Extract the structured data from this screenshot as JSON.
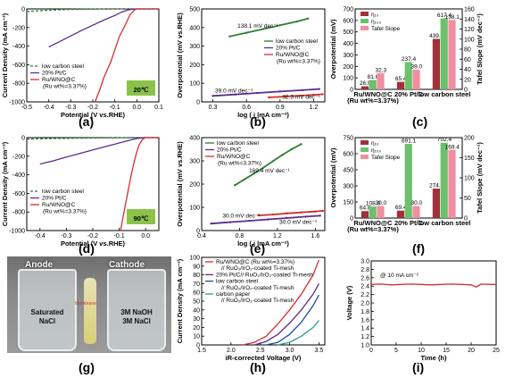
{
  "panels": {
    "a": "(a)",
    "b": "(b)",
    "c": "(c)",
    "d": "(d)",
    "e": "(e)",
    "f": "(f)",
    "g": "(g)",
    "h": "(h)",
    "i": "(i)"
  },
  "photo": {
    "anode": "Anode",
    "cathode": "Cathode",
    "left_solution_1": "Saturated",
    "left_solution_2": "NaCl",
    "right_solution_1": "3M NaOH",
    "right_solution_2": "3M NaCl",
    "membrane": "Membrane"
  },
  "chart_data": [
    {
      "id": "a",
      "type": "line",
      "xlabel": "Potential (V vs.RHE)",
      "ylabel": "Current Density (mA cm⁻²)",
      "xlim": [
        -0.5,
        0.1
      ],
      "ylim": [
        -1000,
        0
      ],
      "xticks": [
        "-0.5",
        "-0.4",
        "-0.3",
        "-0.2",
        "-0.1",
        "0.0",
        "0.1"
      ],
      "yticks": [
        "-1000",
        "-800",
        "-600",
        "-400",
        "-200",
        "0"
      ],
      "badge": "20℃",
      "legend": [
        "low carbon steel",
        "20% Pt/C",
        "Ru/WNO@C",
        "(Ru wt%=3.37%)"
      ],
      "series": [
        {
          "name": "low carbon steel",
          "color": "#2e7d32",
          "dash": "3,2",
          "points": [
            [
              -0.5,
              -28
            ],
            [
              -0.45,
              -20
            ],
            [
              -0.4,
              -14
            ],
            [
              -0.35,
              -9
            ],
            [
              -0.3,
              -6
            ],
            [
              -0.25,
              -3
            ],
            [
              -0.2,
              -2
            ],
            [
              -0.1,
              0
            ],
            [
              0.1,
              0
            ]
          ]
        },
        {
          "name": "20% Pt/C",
          "color": "#5b2c8f",
          "dash": "",
          "points": [
            [
              -0.4,
              -410
            ],
            [
              -0.35,
              -350
            ],
            [
              -0.3,
              -290
            ],
            [
              -0.25,
              -230
            ],
            [
              -0.2,
              -175
            ],
            [
              -0.15,
              -120
            ],
            [
              -0.1,
              -70
            ],
            [
              -0.07,
              -35
            ],
            [
              -0.04,
              -10
            ],
            [
              0.0,
              0
            ],
            [
              0.1,
              0
            ]
          ]
        },
        {
          "name": "Ru/WNO@C",
          "color": "#d32f2f",
          "dash": "",
          "points": [
            [
              -0.19,
              -1000
            ],
            [
              -0.17,
              -880
            ],
            [
              -0.15,
              -740
            ],
            [
              -0.12,
              -580
            ],
            [
              -0.1,
              -440
            ],
            [
              -0.08,
              -300
            ],
            [
              -0.05,
              -160
            ],
            [
              -0.03,
              -60
            ],
            [
              -0.01,
              -10
            ],
            [
              0.0,
              0
            ],
            [
              0.1,
              0
            ]
          ]
        }
      ]
    },
    {
      "id": "b",
      "type": "line",
      "xlabel": "log ( j |mA cm⁻²)",
      "ylabel": "Overpotential (mV vs.RHE)",
      "xlim": [
        0.2,
        1.3
      ],
      "ylim": [
        0,
        500
      ],
      "xticks": [
        "0.3",
        "0.6",
        "0.9",
        "1.2"
      ],
      "yticks": [
        "0",
        "100",
        "200",
        "300",
        "400",
        "500"
      ],
      "legend": [
        "low carbon steel",
        "20% Pt/C",
        "Ru/WNO@C",
        "(Ru wt%=3.37%)"
      ],
      "annotations": [
        {
          "text": "138.1 mV dec⁻¹",
          "x": 0.52,
          "y": 400,
          "color": "#2e7d32"
        },
        {
          "text": "39.0 mV dec⁻¹",
          "x": 0.32,
          "y": 50,
          "color": "#5b2c8f"
        },
        {
          "text": "32.3 mV dec⁻¹",
          "x": 0.92,
          "y": 18,
          "color": "#d32f2f"
        }
      ],
      "series": [
        {
          "name": "low carbon steel",
          "color": "#2e7d32",
          "dash": "",
          "points": [
            [
              0.45,
              352
            ],
            [
              0.6,
              372
            ],
            [
              0.75,
              392
            ],
            [
              0.9,
              412
            ],
            [
              1.05,
              432
            ],
            [
              1.15,
              448
            ]
          ]
        },
        {
          "name": "20% Pt/C",
          "color": "#5b2c8f",
          "dash": "",
          "points": [
            [
              0.3,
              32
            ],
            [
              0.5,
              40
            ],
            [
              0.7,
              48
            ],
            [
              0.9,
              56
            ],
            [
              1.1,
              63
            ],
            [
              1.25,
              69
            ]
          ]
        },
        {
          "name": "Ru/WNO@C",
          "color": "#d32f2f",
          "dash": "",
          "points": [
            [
              0.8,
              24
            ],
            [
              0.95,
              29
            ],
            [
              1.1,
              34
            ],
            [
              1.2,
              38
            ],
            [
              1.28,
              41
            ]
          ]
        }
      ]
    },
    {
      "id": "c",
      "type": "bar",
      "ylabel": "Overpotential (mV)",
      "y2label": "Tafel Slope (mV dec⁻¹)",
      "ylim": [
        0,
        700
      ],
      "y2lim": [
        0,
        160
      ],
      "yticks": [
        "0",
        "100",
        "200",
        "300",
        "400",
        "500",
        "600",
        "700"
      ],
      "y2ticks": [
        "0",
        "20",
        "40",
        "60",
        "80",
        "100",
        "120",
        "140",
        "160"
      ],
      "categories": [
        "Ru/WNO@C",
        "20% Pt/C",
        "low carbon steel"
      ],
      "category_sub": [
        "(Ru wt%=3.37%)",
        "",
        ""
      ],
      "legend": [
        "η₁₀",
        "η₁₀₀",
        "Tafel Slope"
      ],
      "series": [
        {
          "name": "η₁₀",
          "color": "#a0303a",
          "values": [
            26.9,
            65.4,
            439.4
          ],
          "labels": [
            "26.9",
            "65.4",
            "439.4"
          ],
          "axis": "left"
        },
        {
          "name": "η₁₀₀",
          "color": "#6cc06c",
          "values": [
            81.6,
            237.4,
            617.4
          ],
          "labels": [
            "81.6",
            "237.4",
            "617.4"
          ],
          "axis": "left"
        },
        {
          "name": "Tafel Slope",
          "color": "#f08fa0",
          "values": [
            32.3,
            39.0,
            138.1
          ],
          "labels": [
            "32.3",
            "39.0",
            "138.1"
          ],
          "axis": "right"
        }
      ]
    },
    {
      "id": "d",
      "type": "line",
      "xlabel": "Potential (V vs.RHE)",
      "ylabel": "Current Density (mA cm⁻²)",
      "xlim": [
        -0.45,
        0.05
      ],
      "ylim": [
        -1000,
        0
      ],
      "xticks": [
        "-0.4",
        "-0.3",
        "-0.2",
        "-0.1",
        "0.0"
      ],
      "yticks": [
        "-1000",
        "-800",
        "-600",
        "-400",
        "-200",
        "0"
      ],
      "badge": "90℃",
      "legend": [
        "low carbon steel",
        "20% Pt/C",
        "Ru/WNO@C",
        "(Ru wt%=3.37%)"
      ],
      "series": [
        {
          "name": "low carbon steel",
          "color": "#2e7d32",
          "dash": "3,2",
          "points": [
            [
              -0.45,
              -16
            ],
            [
              -0.35,
              -10
            ],
            [
              -0.25,
              -6
            ],
            [
              -0.15,
              -3
            ],
            [
              -0.08,
              -1
            ],
            [
              0.0,
              0
            ],
            [
              0.05,
              0
            ]
          ]
        },
        {
          "name": "20% Pt/C",
          "color": "#5b2c8f",
          "dash": "",
          "points": [
            [
              -0.4,
              -285
            ],
            [
              -0.35,
              -250
            ],
            [
              -0.3,
              -210
            ],
            [
              -0.25,
              -170
            ],
            [
              -0.2,
              -132
            ],
            [
              -0.15,
              -95
            ],
            [
              -0.1,
              -58
            ],
            [
              -0.06,
              -28
            ],
            [
              -0.03,
              -8
            ],
            [
              0.0,
              0
            ],
            [
              0.05,
              0
            ]
          ]
        },
        {
          "name": "Ru/WNO@C",
          "color": "#d32f2f",
          "dash": "",
          "points": [
            [
              -0.095,
              -1000
            ],
            [
              -0.085,
              -850
            ],
            [
              -0.075,
              -700
            ],
            [
              -0.065,
              -550
            ],
            [
              -0.055,
              -410
            ],
            [
              -0.045,
              -280
            ],
            [
              -0.035,
              -170
            ],
            [
              -0.025,
              -80
            ],
            [
              -0.012,
              -20
            ],
            [
              0.0,
              0
            ],
            [
              0.05,
              0
            ]
          ]
        }
      ]
    },
    {
      "id": "e",
      "type": "line",
      "xlabel": "log ( j |mA cm⁻²)",
      "ylabel": "Overpotential (mV vs.RHE)",
      "xlim": [
        0.4,
        1.7
      ],
      "ylim": [
        0,
        400
      ],
      "xticks": [
        "0.4",
        "0.8",
        "1.2",
        "1.6"
      ],
      "yticks": [
        "0",
        "100",
        "200",
        "300",
        "400"
      ],
      "legend": [
        "low carbon steel",
        "20% Pt/C",
        "Ru/WNO@C",
        "(Ru wt%=3.37%)"
      ],
      "annotations": [
        {
          "text": "169.4 mV dec⁻¹",
          "x": 0.9,
          "y": 250,
          "color": "#2e7d32"
        },
        {
          "text": "30.0 mV dec⁻¹",
          "x": 0.62,
          "y": 55,
          "color": "#5b2c8f"
        },
        {
          "text": "30.0 mV dec⁻¹",
          "x": 1.22,
          "y": 28,
          "color": "#d32f2f"
        }
      ],
      "series": [
        {
          "name": "low carbon steel",
          "color": "#2e7d32",
          "dash": "",
          "points": [
            [
              0.75,
              195
            ],
            [
              0.85,
              220
            ],
            [
              0.95,
              245
            ],
            [
              1.05,
              270
            ],
            [
              1.15,
              298
            ],
            [
              1.25,
              325
            ],
            [
              1.35,
              350
            ],
            [
              1.45,
              372
            ]
          ]
        },
        {
          "name": "20% Pt/C",
          "color": "#5b2c8f",
          "dash": "",
          "points": [
            [
              0.5,
              30
            ],
            [
              0.7,
              36
            ],
            [
              0.9,
              42
            ],
            [
              1.1,
              48
            ],
            [
              1.3,
              54
            ],
            [
              1.5,
              60
            ],
            [
              1.65,
              64
            ]
          ]
        },
        {
          "name": "Ru/WNO@C",
          "color": "#d32f2f",
          "dash": "",
          "points": [
            [
              1.0,
              65
            ],
            [
              1.15,
              69
            ],
            [
              1.3,
              74
            ],
            [
              1.45,
              78
            ],
            [
              1.6,
              82
            ],
            [
              1.68,
              85
            ]
          ]
        }
      ]
    },
    {
      "id": "f",
      "type": "bar",
      "ylabel": "Overpotential (mV)",
      "y2label": "Tafel Slope (mV dec⁻¹)",
      "ylim": [
        0,
        750
      ],
      "y2lim": [
        0,
        200
      ],
      "yticks": [
        "0",
        "150",
        "300",
        "450",
        "600",
        "750"
      ],
      "y2ticks": [
        "0",
        "50",
        "100",
        "150",
        "200"
      ],
      "categories": [
        "Ru/WNO@C",
        "20% Pt/C",
        "low carbon steel"
      ],
      "category_sub": [
        "(Ru wt%=3.37%)",
        "",
        ""
      ],
      "legend": [
        "η₁₀",
        "η₁₀₀",
        "Tafel Slope"
      ],
      "series": [
        {
          "name": "η₁₀",
          "color": "#a0303a",
          "values": [
            64.8,
            69.4,
            274.4
          ],
          "labels": [
            "64.8",
            "69.4",
            "274.4"
          ],
          "axis": "left"
        },
        {
          "name": "η₁₀₀",
          "color": "#6cc06c",
          "values": [
            108.0,
            691.1,
            702.4
          ],
          "labels": [
            "108.0",
            "691.1",
            "702.4"
          ],
          "axis": "left"
        },
        {
          "name": "Tafel Slope",
          "color": "#f08fa0",
          "values": [
            30.0,
            30.0,
            169.4
          ],
          "labels": [
            "30.0",
            "30.0",
            "169.4"
          ],
          "axis": "right"
        }
      ]
    },
    {
      "id": "h",
      "type": "line",
      "xlabel": "iR-corrected Voltage (V)",
      "ylabel": "Current Density (mA cm⁻²)",
      "xlim": [
        1.5,
        3.6
      ],
      "ylim": [
        0,
        100
      ],
      "xticks": [
        "1.5",
        "2.0",
        "2.5",
        "3.0",
        "3.5"
      ],
      "yticks": [
        "0",
        "10",
        "20",
        "30",
        "40",
        "50",
        "60",
        "70",
        "80",
        "90",
        "100"
      ],
      "legend": [
        "Ru/WNO@C (Ru wt%=3.37%)",
        "// RuO₂/IrO₂-coated Ti-mesh",
        "20% Pt/C// RuO₂/IrO₂-coated Ti-mesh",
        "low carbon steel",
        "// RuO₂/IrO₂-coated Ti-mesh",
        "carbon paper",
        "// RuO₂/IrO₂-coated Ti-mesh"
      ],
      "series": [
        {
          "name": "Ru/WNO@C",
          "color": "#d32f2f",
          "points": [
            [
              2.2,
              0
            ],
            [
              2.4,
              3
            ],
            [
              2.6,
              10
            ],
            [
              2.8,
              24
            ],
            [
              3.0,
              40
            ],
            [
              3.2,
              58
            ],
            [
              3.4,
              80
            ],
            [
              3.5,
              97
            ]
          ]
        },
        {
          "name": "20% Pt/C",
          "color": "#5b2c8f",
          "points": [
            [
              2.4,
              0
            ],
            [
              2.6,
              4
            ],
            [
              2.8,
              12
            ],
            [
              3.0,
              25
            ],
            [
              3.2,
              40
            ],
            [
              3.4,
              58
            ],
            [
              3.5,
              70
            ]
          ]
        },
        {
          "name": "low carbon steel",
          "color": "#1a4fa0",
          "points": [
            [
              2.6,
              0
            ],
            [
              2.8,
              3
            ],
            [
              3.0,
              12
            ],
            [
              3.2,
              26
            ],
            [
              3.4,
              45
            ],
            [
              3.5,
              57
            ]
          ]
        },
        {
          "name": "carbon paper",
          "color": "#2e9d8f",
          "points": [
            [
              2.8,
              0
            ],
            [
              3.0,
              3
            ],
            [
              3.2,
              10
            ],
            [
              3.4,
              20
            ],
            [
              3.5,
              28
            ]
          ]
        }
      ]
    },
    {
      "id": "i",
      "type": "line",
      "xlabel": "Time (h)",
      "ylabel": "Voltage (V)",
      "xlim": [
        0,
        25
      ],
      "ylim": [
        1.0,
        3.0
      ],
      "xticks": [
        "0",
        "5",
        "10",
        "15",
        "20",
        "25"
      ],
      "yticks": [
        "1.0",
        "1.2",
        "1.4",
        "1.6",
        "1.8",
        "2.0",
        "2.2",
        "2.4",
        "2.6",
        "2.8",
        "3.0"
      ],
      "annotation": "@ 10 mA cm⁻²",
      "series": [
        {
          "name": "",
          "color": "#d32f2f",
          "points": [
            [
              0,
              2.44
            ],
            [
              2,
              2.45
            ],
            [
              4,
              2.43
            ],
            [
              6,
              2.44
            ],
            [
              8,
              2.45
            ],
            [
              10,
              2.44
            ],
            [
              12,
              2.43
            ],
            [
              14,
              2.44
            ],
            [
              16,
              2.45
            ],
            [
              18,
              2.44
            ],
            [
              20,
              2.43
            ],
            [
              21,
              2.38
            ],
            [
              22,
              2.45
            ],
            [
              24,
              2.44
            ],
            [
              25,
              2.44
            ]
          ]
        }
      ]
    }
  ]
}
